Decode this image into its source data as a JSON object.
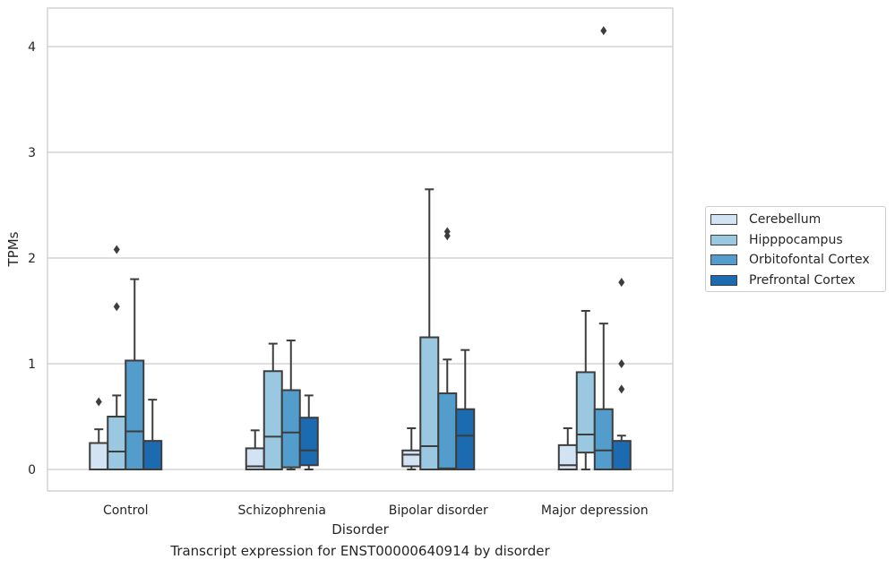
{
  "chart_data": {
    "type": "box",
    "title": "",
    "caption": "Transcript expression for ENST00000640914 by disorder",
    "xlabel": "Disorder",
    "ylabel": "TPMs",
    "ylim": [
      -0.2,
      4.37
    ],
    "yticks": [
      0,
      1,
      2,
      3,
      4
    ],
    "grid": "horizontal",
    "legend_position": "right",
    "categories": [
      "Control",
      "Schizophrenia",
      "Bipolar disorder",
      "Major depression"
    ],
    "series": [
      {
        "name": "Cerebellum",
        "color": "#d2e3f3",
        "boxes": [
          {
            "whisker_low": 0.0,
            "q1": 0.0,
            "median": 0.0,
            "q3": 0.25,
            "whisker_high": 0.38,
            "outliers": [
              0.64
            ]
          },
          {
            "whisker_low": 0.0,
            "q1": 0.0,
            "median": 0.03,
            "q3": 0.2,
            "whisker_high": 0.37,
            "outliers": []
          },
          {
            "whisker_low": 0.0,
            "q1": 0.03,
            "median": 0.14,
            "q3": 0.18,
            "whisker_high": 0.39,
            "outliers": []
          },
          {
            "whisker_low": 0.0,
            "q1": 0.0,
            "median": 0.04,
            "q3": 0.23,
            "whisker_high": 0.39,
            "outliers": []
          }
        ]
      },
      {
        "name": "Hipppocampus",
        "color": "#9ac8e0",
        "boxes": [
          {
            "whisker_low": 0.0,
            "q1": 0.0,
            "median": 0.17,
            "q3": 0.5,
            "whisker_high": 0.7,
            "outliers": [
              1.54,
              2.08
            ]
          },
          {
            "whisker_low": 0.0,
            "q1": 0.0,
            "median": 0.31,
            "q3": 0.93,
            "whisker_high": 1.19,
            "outliers": []
          },
          {
            "whisker_low": 0.0,
            "q1": 0.0,
            "median": 0.22,
            "q3": 1.25,
            "whisker_high": 2.65,
            "outliers": []
          },
          {
            "whisker_low": 0.0,
            "q1": 0.16,
            "median": 0.33,
            "q3": 0.92,
            "whisker_high": 1.5,
            "outliers": []
          }
        ]
      },
      {
        "name": "Orbitofontal Cortex",
        "color": "#529dcc",
        "boxes": [
          {
            "whisker_low": 0.0,
            "q1": 0.0,
            "median": 0.36,
            "q3": 1.03,
            "whisker_high": 1.8,
            "outliers": []
          },
          {
            "whisker_low": 0.0,
            "q1": 0.02,
            "median": 0.35,
            "q3": 0.75,
            "whisker_high": 1.22,
            "outliers": []
          },
          {
            "whisker_low": 0.0,
            "q1": 0.0,
            "median": 0.01,
            "q3": 0.72,
            "whisker_high": 1.04,
            "outliers": [
              2.21,
              2.25
            ]
          },
          {
            "whisker_low": 0.0,
            "q1": 0.0,
            "median": 0.18,
            "q3": 0.57,
            "whisker_high": 1.38,
            "outliers": [
              4.15
            ]
          }
        ]
      },
      {
        "name": "Prefrontal Cortex",
        "color": "#1c6aaf",
        "boxes": [
          {
            "whisker_low": 0.0,
            "q1": 0.0,
            "median": 0.0,
            "q3": 0.27,
            "whisker_high": 0.66,
            "outliers": []
          },
          {
            "whisker_low": 0.0,
            "q1": 0.04,
            "median": 0.18,
            "q3": 0.49,
            "whisker_high": 0.7,
            "outliers": []
          },
          {
            "whisker_low": 0.0,
            "q1": 0.0,
            "median": 0.32,
            "q3": 0.57,
            "whisker_high": 1.13,
            "outliers": []
          },
          {
            "whisker_low": 0.0,
            "q1": 0.0,
            "median": 0.0,
            "q3": 0.27,
            "whisker_high": 0.32,
            "outliers": [
              0.76,
              1.77,
              1.0
            ]
          }
        ]
      }
    ]
  }
}
